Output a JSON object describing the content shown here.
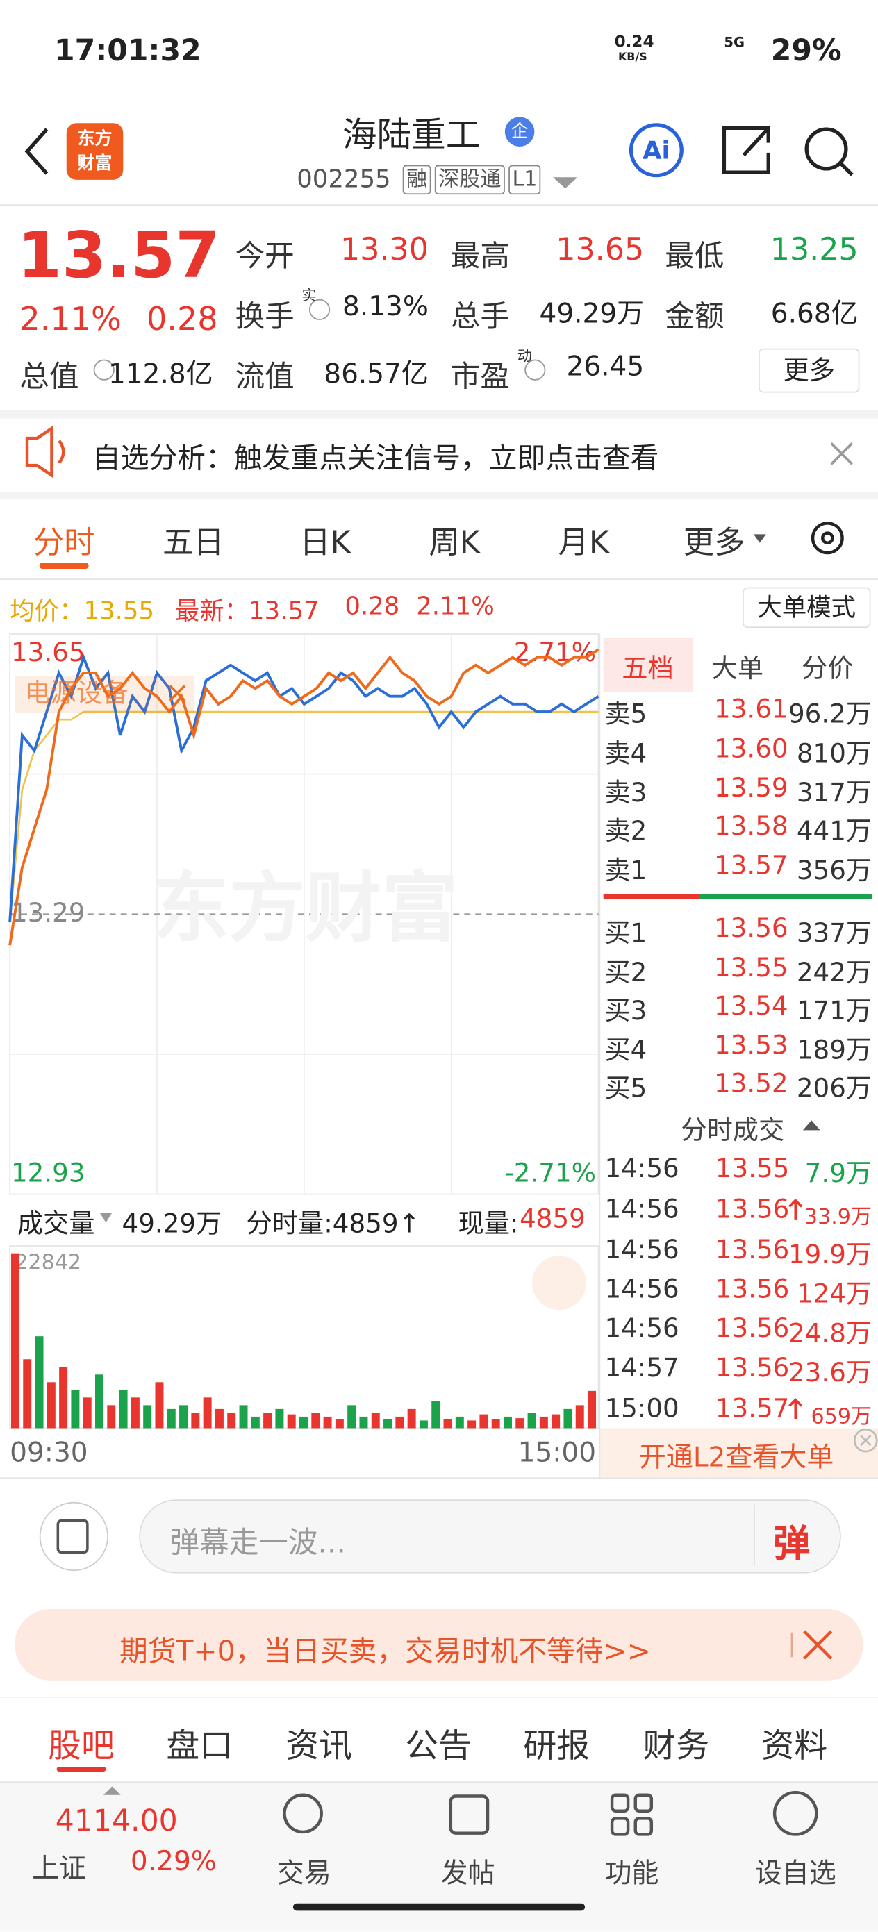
{
  "status_bar": {
    "time": "17:01:32",
    "net_speed": "0.24",
    "net_unit": "KB/S",
    "network": "5G",
    "battery": "29%"
  },
  "header": {
    "logo": [
      "东方",
      "财富"
    ],
    "title": "海陆重工",
    "badge": "企",
    "code": "002255",
    "tags": [
      "融",
      "深股通",
      "L1"
    ],
    "ai": "Ai"
  },
  "quote": {
    "price": "13.57",
    "change_pct": "2.11%",
    "change": "0.28",
    "more": "更多",
    "fields": [
      {
        "label": "今开",
        "value": "13.30",
        "color": "#e8362f"
      },
      {
        "label": "最高",
        "value": "13.65",
        "color": "#e8362f"
      },
      {
        "label": "最低",
        "value": "13.25",
        "color": "#1aa34a"
      },
      {
        "label": "换手",
        "sup": "实",
        "value": "8.13%"
      },
      {
        "label": "总手",
        "value": "49.29万"
      },
      {
        "label": "金额",
        "value": "6.68亿"
      },
      {
        "label": "总值",
        "value": "112.8亿"
      },
      {
        "label": "流值",
        "value": "86.57亿"
      },
      {
        "label": "市盈",
        "sup": "动",
        "value": "26.45"
      }
    ]
  },
  "notice": {
    "text": "自选分析：触发重点关注信号，立即点击查看"
  },
  "tabs": {
    "items": [
      "分时",
      "五日",
      "日K",
      "周K",
      "月K",
      "更多"
    ],
    "active": 0
  },
  "chart": {
    "avg_label": "均价：13.55",
    "latest_label": "最新：13.57",
    "latest_change": "0.28",
    "latest_pct": "2.11%",
    "mode_button": "大单模式",
    "ylim": [
      12.93,
      13.65
    ],
    "pre_close": 13.29,
    "pct_top": "2.71%",
    "pct_bottom": "-2.71%",
    "overlay_name": "电源设备",
    "watermark": "东方财富",
    "x_start": "09:30",
    "x_end": "15:00",
    "price_color": "#2b6fd6",
    "overlay_color": "#ee6a1c",
    "avg_color": "#f2c14e",
    "price": [
      13.28,
      13.52,
      13.5,
      13.55,
      13.6,
      13.57,
      13.62,
      13.58,
      13.6,
      13.52,
      13.57,
      13.55,
      13.6,
      13.58,
      13.5,
      13.53,
      13.59,
      13.6,
      13.61,
      13.6,
      13.59,
      13.6,
      13.57,
      13.58,
      13.56,
      13.57,
      13.58,
      13.6,
      13.59,
      13.57,
      13.58,
      13.57,
      13.57,
      13.58,
      13.56,
      13.53,
      13.55,
      13.53,
      13.55,
      13.56,
      13.57,
      13.56,
      13.56,
      13.55,
      13.55,
      13.56,
      13.55,
      13.56,
      13.57
    ],
    "overlay": [
      13.25,
      13.35,
      13.4,
      13.45,
      13.55,
      13.58,
      13.6,
      13.6,
      13.57,
      13.58,
      13.6,
      13.58,
      13.57,
      13.55,
      13.57,
      13.52,
      13.58,
      13.56,
      13.57,
      13.59,
      13.58,
      13.59,
      13.57,
      13.56,
      13.57,
      13.58,
      13.6,
      13.59,
      13.6,
      13.58,
      13.6,
      13.62,
      13.6,
      13.59,
      13.57,
      13.56,
      13.57,
      13.6,
      13.61,
      13.6,
      13.61,
      13.62,
      13.61,
      13.62,
      13.62,
      13.61,
      13.62,
      13.62,
      13.63
    ],
    "avg": [
      13.28,
      13.45,
      13.5,
      13.52,
      13.54,
      13.54,
      13.55,
      13.55,
      13.55,
      13.55,
      13.55,
      13.55,
      13.55,
      13.55,
      13.55,
      13.55,
      13.55,
      13.55,
      13.55,
      13.55,
      13.55,
      13.55,
      13.55,
      13.55,
      13.55,
      13.55,
      13.55,
      13.55,
      13.55,
      13.55,
      13.55,
      13.55,
      13.55,
      13.55,
      13.55,
      13.55,
      13.55,
      13.55,
      13.55,
      13.55,
      13.55,
      13.55,
      13.55,
      13.55,
      13.55,
      13.55,
      13.55,
      13.55,
      13.55
    ]
  },
  "volume": {
    "label": "成交量",
    "total": "49.29万",
    "tick_vol": "分时量:4859↑",
    "now_label": "现量:",
    "now_value": "4859",
    "max": 22842,
    "up_color": "#e8362f",
    "down_color": "#1aa34a",
    "values": [
      22842,
      9000,
      12000,
      6000,
      8000,
      5000,
      4000,
      7000,
      3000,
      5000,
      4000,
      3000,
      6000,
      2500,
      3000,
      2000,
      4000,
      2500,
      2000,
      3000,
      1500,
      2000,
      2500,
      1800,
      1500,
      2000,
      1500,
      1200,
      3000,
      1500,
      2000,
      1200,
      1500,
      2500,
      1000,
      3500,
      1200,
      1500,
      1000,
      1800,
      1200,
      1500,
      1300,
      2000,
      1500,
      1800,
      2500,
      3000,
      4859
    ]
  },
  "order_book": {
    "tabs": [
      "五档",
      "大单",
      "分价"
    ],
    "asks": [
      {
        "label": "卖5",
        "price": "13.61",
        "vol": "96.2万"
      },
      {
        "label": "卖4",
        "price": "13.60",
        "vol": "810万"
      },
      {
        "label": "卖3",
        "price": "13.59",
        "vol": "317万"
      },
      {
        "label": "卖2",
        "price": "13.58",
        "vol": "441万"
      },
      {
        "label": "卖1",
        "price": "13.57",
        "vol": "356万"
      }
    ],
    "bids": [
      {
        "label": "买1",
        "price": "13.56",
        "vol": "337万"
      },
      {
        "label": "买2",
        "price": "13.55",
        "vol": "242万"
      },
      {
        "label": "买3",
        "price": "13.54",
        "vol": "171万"
      },
      {
        "label": "买4",
        "price": "13.53",
        "vol": "189万"
      },
      {
        "label": "买5",
        "price": "13.52",
        "vol": "206万"
      }
    ],
    "trades_title": "分时成交",
    "trades": [
      {
        "time": "14:56",
        "price": "13.55",
        "vol": "7.9万",
        "color": "#1aa34a"
      },
      {
        "time": "14:56",
        "price": "13.56",
        "vol": "33.9万",
        "up": true,
        "color": "#e8362f"
      },
      {
        "time": "14:56",
        "price": "13.56",
        "vol": "19.9万",
        "color": "#e8362f"
      },
      {
        "time": "14:56",
        "price": "13.56",
        "vol": "124万",
        "color": "#e8362f"
      },
      {
        "time": "14:56",
        "price": "13.56",
        "vol": "24.8万",
        "color": "#e8362f"
      },
      {
        "time": "14:57",
        "price": "13.56",
        "vol": "23.6万",
        "color": "#e8362f"
      },
      {
        "time": "15:00",
        "price": "13.57",
        "vol": "659万",
        "up": true,
        "color": "#e8362f"
      }
    ],
    "l2": "开通L2查看大单"
  },
  "comment": {
    "placeholder": "弹幕走一波...",
    "button": "弹"
  },
  "ad": {
    "text": "期货T+0，当日买卖，交易时机不等待>>"
  },
  "sub_tabs": {
    "items": [
      "股吧",
      "盘口",
      "资讯",
      "公告",
      "研报",
      "财务",
      "资料"
    ],
    "active": 0
  },
  "bottom_nav": {
    "index_value": "4114.00",
    "index_name": "上证",
    "index_pct": "0.29%",
    "items": [
      "交易",
      "发帖",
      "功能",
      "设自选"
    ]
  }
}
